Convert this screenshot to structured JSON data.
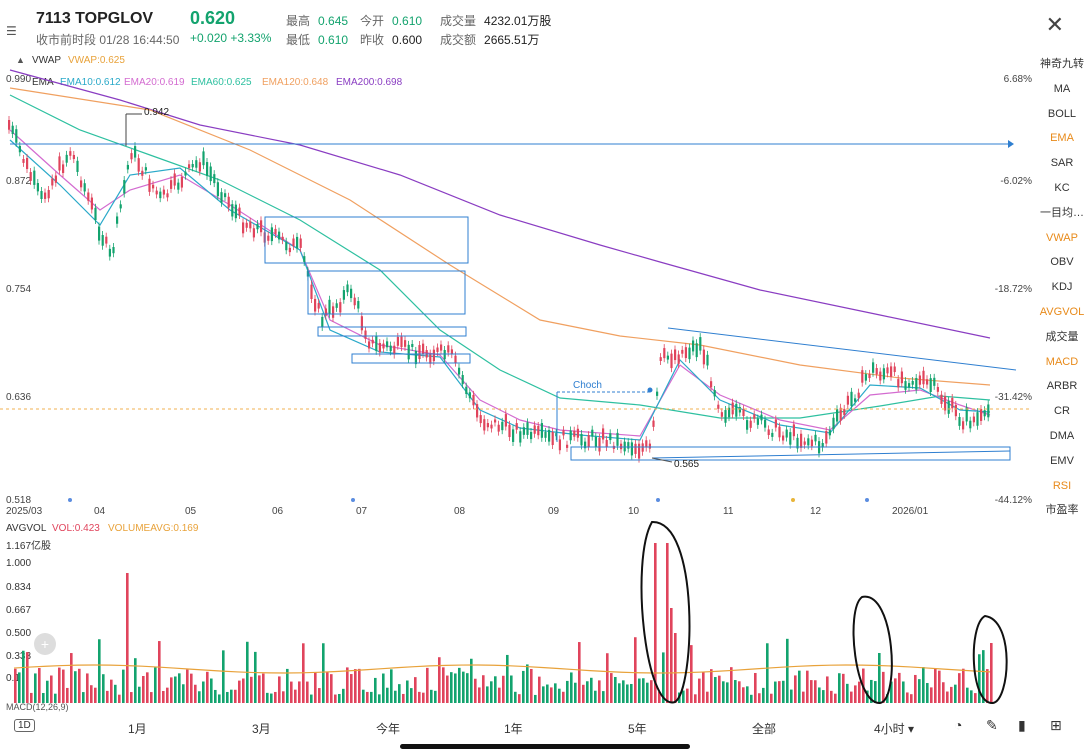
{
  "header": {
    "ticker": "7113  TOPGLOV",
    "price": "0.620",
    "session": "收市前时段 01/28 16:44:50",
    "change": "+0.020 +3.33%",
    "stats": [
      {
        "k": "最高",
        "v": "0.645"
      },
      {
        "k": "今开",
        "v": "0.610"
      },
      {
        "k": "成交量",
        "v": "4232.01万股"
      },
      {
        "k": "最低",
        "v": "0.610"
      },
      {
        "k": "昨收",
        "v": "0.600"
      },
      {
        "k": "成交额",
        "v": "2665.51万"
      }
    ]
  },
  "indicators": {
    "vwap_label": "VWAP",
    "vwap_value": "VWAP:0.625",
    "ema_label": "EMA",
    "ema10": "EMA10:0.612",
    "ema20": "EMA20:0.619",
    "ema60": "EMA60:0.625",
    "ema120": "EMA120:0.648",
    "ema200": "EMA200:0.698"
  },
  "price_axis": [
    "0.990",
    "0.872",
    "0.754",
    "0.636",
    "0.518"
  ],
  "pct_axis": [
    "6.68%",
    "-6.02%",
    "-18.72%",
    "-31.42%",
    "-44.12%"
  ],
  "x_labels": [
    "2025/03",
    "04",
    "05",
    "06",
    "07",
    "08",
    "09",
    "10",
    "11",
    "12",
    "2026/01"
  ],
  "annotations": {
    "high": "0.942",
    "low": "0.565",
    "choch": "Choch"
  },
  "volume": {
    "label": "AVGVOL",
    "vol": "VOL:0.423",
    "volavg": "VOLUMEAVG:0.169",
    "unit": "1.167亿股",
    "axis": [
      "1.000",
      "0.834",
      "0.667",
      "0.500",
      "0.333",
      "0.1"
    ]
  },
  "macd_partial": "MACD(12,26,9)",
  "sidebar": [
    "神奇九转",
    "MA",
    "BOLL",
    "EMA",
    "SAR",
    "KC",
    "一目均…",
    "VWAP",
    "OBV",
    "KDJ",
    "AVGVOL",
    "成交量",
    "MACD",
    "ARBR",
    "CR",
    "DMA",
    "EMV",
    "RSI",
    "市盈率"
  ],
  "sidebar_active": [
    "EMA",
    "VWAP",
    "AVGVOL",
    "MACD",
    "RSI"
  ],
  "bottom_bar": [
    "1D",
    "1月",
    "3月",
    "今年",
    "1年",
    "5年",
    "全部",
    "4小时 ▾"
  ],
  "colors": {
    "up": "#13a36e",
    "down": "#e0445c",
    "ema10": "#2aa9c9",
    "ema20": "#d36bd0",
    "ema60": "#2ec0a0",
    "ema120": "#f0a060",
    "ema200": "#8a3dc2",
    "vwap": "#e8a23a",
    "box": "#2f7fd0"
  }
}
